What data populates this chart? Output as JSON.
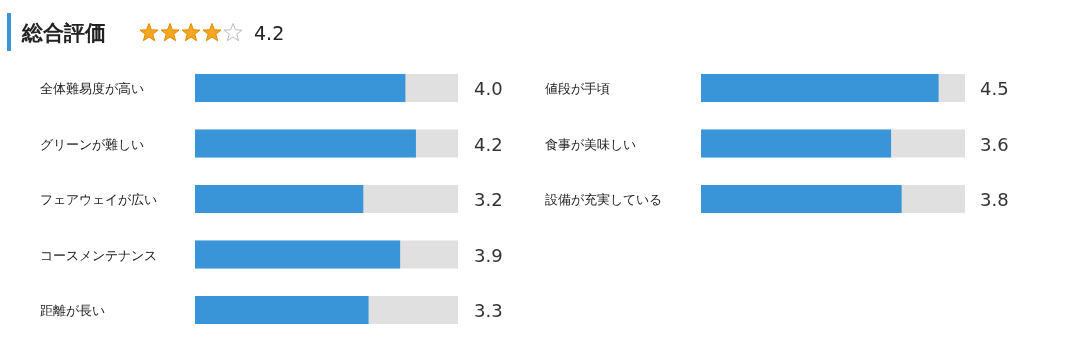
{
  "chart_data": [
    {
      "type": "other",
      "title": "総合評価",
      "annotations": [
        "4.2"
      ]
    },
    {
      "type": "bar",
      "orientation": "horizontal",
      "categories": [
        "全体難易度が高い",
        "グリーンが難しい",
        "フェアウェイが広い",
        "コースメンテナンス",
        "距離が長い"
      ],
      "values": [
        4.0,
        4.2,
        3.2,
        3.9,
        3.3
      ],
      "value_labels": [
        "4.0",
        "4.2",
        "3.2",
        "3.9",
        "3.3"
      ],
      "color": "#3a95d8",
      "xlim": [
        0,
        5
      ],
      "tick_labels": "y"
    },
    {
      "type": "bar",
      "orientation": "horizontal",
      "categories": [
        "値段が手頃",
        "食事が美味しい",
        "設備が充実している"
      ],
      "values": [
        4.5,
        3.6,
        3.8
      ],
      "value_labels": [
        "4.5",
        "3.6",
        "3.8"
      ],
      "color": "#3a95d8",
      "xlim": [
        0,
        5
      ],
      "tick_labels": "y"
    }
  ]
}
